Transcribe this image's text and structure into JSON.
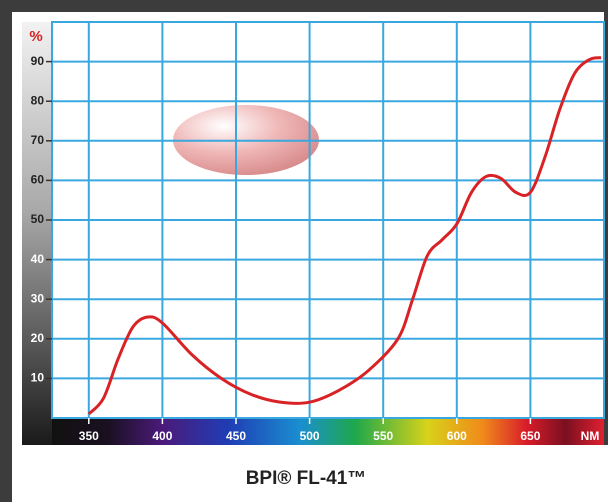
{
  "chart_data": {
    "type": "line",
    "title": "BPI® FL-41™",
    "y_unit": "%",
    "x_unit": "NM",
    "x": [
      350,
      360,
      370,
      380,
      390,
      400,
      420,
      440,
      460,
      480,
      500,
      520,
      540,
      560,
      570,
      580,
      590,
      600,
      610,
      620,
      630,
      640,
      650,
      660,
      670,
      680,
      690,
      698
    ],
    "values": [
      1,
      5,
      15,
      23,
      25.5,
      24,
      16,
      10,
      6,
      4,
      4,
      7,
      12,
      20,
      30,
      41,
      45,
      49,
      57,
      61,
      60.5,
      57,
      57,
      66,
      78,
      87,
      90.5,
      91
    ],
    "color": "#d82226",
    "xlim": [
      325,
      700
    ],
    "ylim": [
      0,
      100
    ],
    "xticks": [
      350,
      400,
      450,
      500,
      550,
      600,
      650
    ],
    "yticks": [
      10,
      20,
      30,
      40,
      50,
      60,
      70,
      80,
      90
    ],
    "grid": true
  }
}
